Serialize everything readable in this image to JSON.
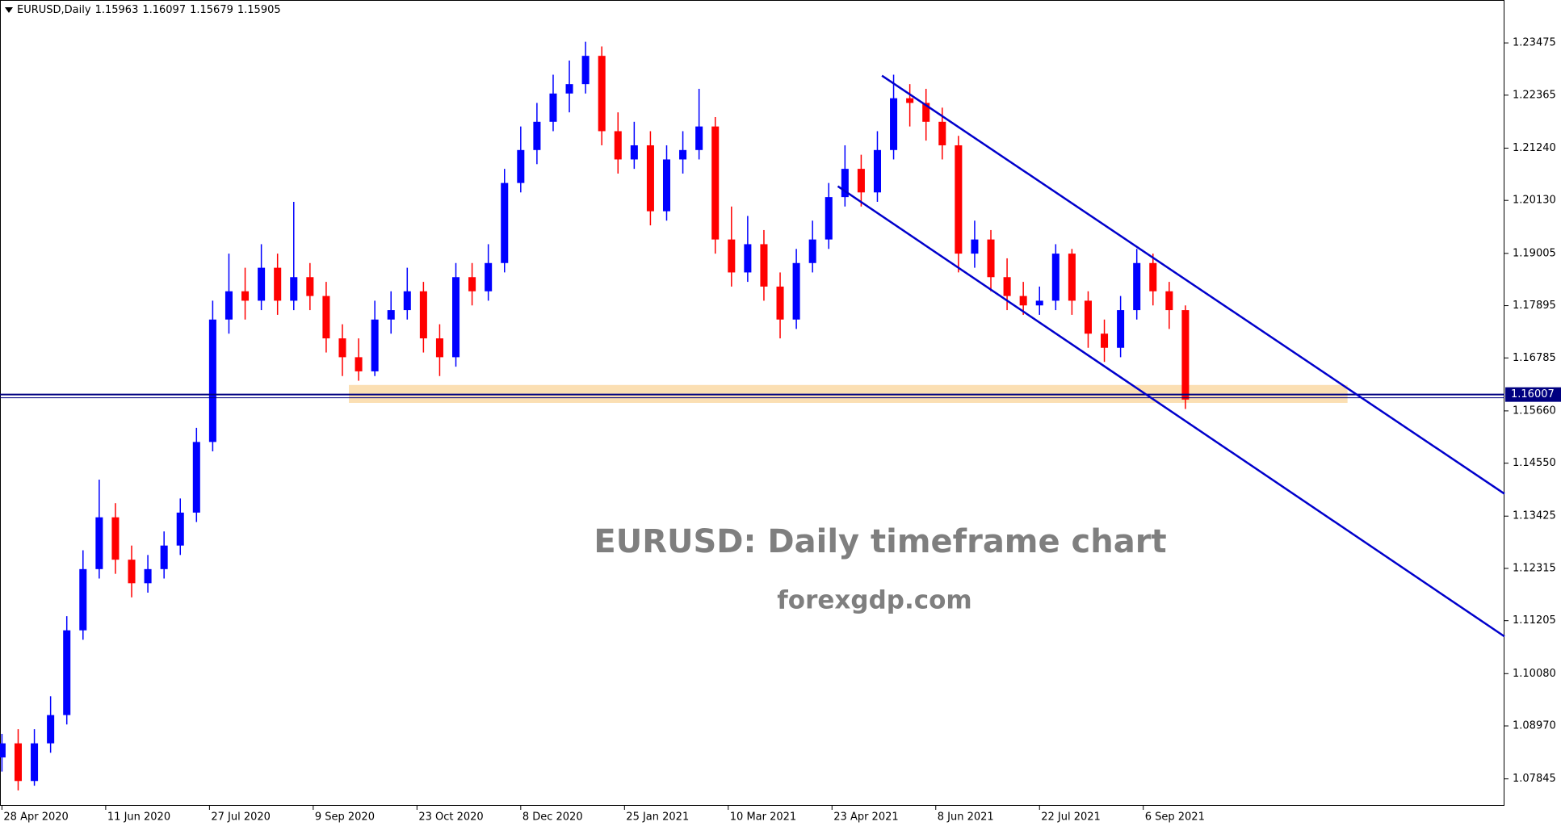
{
  "chart_data": {
    "type": "candlestick",
    "symbol": "EURUSD,Daily",
    "header_ohlc": [
      1.15963,
      1.16097,
      1.15679,
      1.15905
    ],
    "title": "EURUSD: Daily timeframe chart",
    "subtitle": "forexgdp.com",
    "up_color": "#0000ff",
    "down_color": "#ff0000",
    "xlim": [
      -0.6,
      463.4
    ],
    "ylim": [
      1.07273,
      1.24386
    ],
    "xticks": [
      {
        "value": 0,
        "label": "28 Apr 2020"
      },
      {
        "value": 32,
        "label": "11 Jun 2020"
      },
      {
        "value": 64,
        "label": "27 Jul 2020"
      },
      {
        "value": 96,
        "label": "9 Sep 2020"
      },
      {
        "value": 128,
        "label": "23 Oct 2020"
      },
      {
        "value": 160,
        "label": "8 Dec 2020"
      },
      {
        "value": 192,
        "label": "25 Jan 2021"
      },
      {
        "value": 224,
        "label": "10 Mar 2021"
      },
      {
        "value": 256,
        "label": "23 Apr 2021"
      },
      {
        "value": 288,
        "label": "8 Jun 2021"
      },
      {
        "value": 320,
        "label": "22 Jul 2021"
      },
      {
        "value": 352,
        "label": "6 Sep 2021"
      }
    ],
    "yticks": [
      1.23475,
      1.22365,
      {
        "value": 1.2124,
        "label": "1.21240"
      },
      {
        "value": 1.2013,
        "label": "1.20130"
      },
      1.19005,
      1.17895,
      1.16785,
      {
        "value": 1.1566,
        "label": "1.15660"
      },
      {
        "value": 1.1455,
        "label": "1.14550"
      },
      1.13425,
      1.12315,
      1.11205,
      {
        "value": 1.1008,
        "label": "1.10080"
      },
      {
        "value": 1.0897,
        "label": "1.08970"
      },
      1.07845
    ],
    "x": [
      0,
      5,
      10,
      15,
      20,
      25,
      30,
      35,
      40,
      45,
      50,
      55,
      60,
      65,
      70,
      75,
      80,
      85,
      90,
      95,
      100,
      105,
      110,
      115,
      120,
      125,
      130,
      135,
      140,
      145,
      150,
      155,
      160,
      165,
      170,
      175,
      180,
      185,
      190,
      195,
      200,
      205,
      210,
      215,
      220,
      225,
      230,
      235,
      240,
      245,
      250,
      255,
      260,
      265,
      270,
      275,
      280,
      285,
      290,
      295,
      300,
      305,
      310,
      315,
      320,
      325,
      330,
      335,
      340,
      345,
      350,
      355,
      360,
      365
    ],
    "ohlc": [
      [
        1.083,
        1.088,
        1.08,
        1.086
      ],
      [
        1.086,
        1.089,
        1.076,
        1.078
      ],
      [
        1.078,
        1.089,
        1.077,
        1.086
      ],
      [
        1.086,
        1.096,
        1.084,
        1.092
      ],
      [
        1.092,
        1.113,
        1.09,
        1.11
      ],
      [
        1.11,
        1.127,
        1.108,
        1.123
      ],
      [
        1.123,
        1.142,
        1.121,
        1.134
      ],
      [
        1.134,
        1.137,
        1.122,
        1.125
      ],
      [
        1.125,
        1.128,
        1.117,
        1.12
      ],
      [
        1.12,
        1.126,
        1.118,
        1.123
      ],
      [
        1.123,
        1.131,
        1.121,
        1.128
      ],
      [
        1.128,
        1.138,
        1.126,
        1.135
      ],
      [
        1.135,
        1.153,
        1.133,
        1.15
      ],
      [
        1.15,
        1.18,
        1.148,
        1.176
      ],
      [
        1.176,
        1.19,
        1.173,
        1.182
      ],
      [
        1.182,
        1.187,
        1.176,
        1.18
      ],
      [
        1.18,
        1.192,
        1.178,
        1.187
      ],
      [
        1.187,
        1.19,
        1.177,
        1.18
      ],
      [
        1.18,
        1.201,
        1.178,
        1.185
      ],
      [
        1.185,
        1.188,
        1.178,
        1.181
      ],
      [
        1.181,
        1.184,
        1.169,
        1.172
      ],
      [
        1.172,
        1.175,
        1.164,
        1.168
      ],
      [
        1.168,
        1.172,
        1.163,
        1.165
      ],
      [
        1.165,
        1.18,
        1.164,
        1.176
      ],
      [
        1.176,
        1.182,
        1.173,
        1.178
      ],
      [
        1.178,
        1.187,
        1.176,
        1.182
      ],
      [
        1.182,
        1.184,
        1.169,
        1.172
      ],
      [
        1.172,
        1.175,
        1.164,
        1.168
      ],
      [
        1.168,
        1.188,
        1.166,
        1.185
      ],
      [
        1.185,
        1.188,
        1.179,
        1.182
      ],
      [
        1.182,
        1.192,
        1.18,
        1.188
      ],
      [
        1.188,
        1.208,
        1.186,
        1.205
      ],
      [
        1.205,
        1.217,
        1.203,
        1.212
      ],
      [
        1.212,
        1.222,
        1.209,
        1.218
      ],
      [
        1.218,
        1.228,
        1.216,
        1.224
      ],
      [
        1.224,
        1.231,
        1.22,
        1.226
      ],
      [
        1.226,
        1.235,
        1.224,
        1.232
      ],
      [
        1.232,
        1.234,
        1.213,
        1.216
      ],
      [
        1.216,
        1.22,
        1.207,
        1.21
      ],
      [
        1.21,
        1.218,
        1.208,
        1.213
      ],
      [
        1.213,
        1.216,
        1.196,
        1.199
      ],
      [
        1.199,
        1.213,
        1.197,
        1.21
      ],
      [
        1.21,
        1.216,
        1.207,
        1.212
      ],
      [
        1.212,
        1.225,
        1.21,
        1.217
      ],
      [
        1.217,
        1.219,
        1.19,
        1.193
      ],
      [
        1.193,
        1.2,
        1.183,
        1.186
      ],
      [
        1.186,
        1.198,
        1.184,
        1.192
      ],
      [
        1.192,
        1.195,
        1.18,
        1.183
      ],
      [
        1.183,
        1.186,
        1.172,
        1.176
      ],
      [
        1.176,
        1.191,
        1.174,
        1.188
      ],
      [
        1.188,
        1.197,
        1.186,
        1.193
      ],
      [
        1.193,
        1.205,
        1.191,
        1.202
      ],
      [
        1.202,
        1.213,
        1.2,
        1.208
      ],
      [
        1.208,
        1.211,
        1.2,
        1.203
      ],
      [
        1.203,
        1.216,
        1.201,
        1.212
      ],
      [
        1.212,
        1.228,
        1.21,
        1.223
      ],
      [
        1.223,
        1.226,
        1.217,
        1.222
      ],
      [
        1.222,
        1.225,
        1.214,
        1.218
      ],
      [
        1.218,
        1.221,
        1.21,
        1.213
      ],
      [
        1.213,
        1.215,
        1.186,
        1.19
      ],
      [
        1.19,
        1.197,
        1.187,
        1.193
      ],
      [
        1.193,
        1.195,
        1.182,
        1.185
      ],
      [
        1.185,
        1.189,
        1.178,
        1.181
      ],
      [
        1.181,
        1.184,
        1.177,
        1.179
      ],
      [
        1.179,
        1.183,
        1.177,
        1.18
      ],
      [
        1.18,
        1.192,
        1.178,
        1.19
      ],
      [
        1.19,
        1.191,
        1.177,
        1.18
      ],
      [
        1.18,
        1.182,
        1.17,
        1.173
      ],
      [
        1.173,
        1.176,
        1.167,
        1.17
      ],
      [
        1.17,
        1.181,
        1.168,
        1.178
      ],
      [
        1.178,
        1.191,
        1.176,
        1.188
      ],
      [
        1.188,
        1.19,
        1.179,
        1.182
      ],
      [
        1.182,
        1.184,
        1.174,
        1.178
      ],
      [
        1.178,
        1.179,
        1.157,
        1.159
      ]
    ],
    "price_line": 1.16007,
    "price_line_color": "#000080",
    "support_zone": {
      "x": [
        107,
        415
      ],
      "y": [
        1.1583,
        1.1621
      ],
      "color": "#fad9a6"
    },
    "trendlines": [
      {
        "x": [
          271.4,
          463.4
        ],
        "y": [
          1.2278,
          1.139
        ],
        "color": "#0000cc"
      },
      {
        "x": [
          257.8,
          463.4
        ],
        "y": [
          1.2043,
          1.1087
        ],
        "color": "#0000cc"
      }
    ]
  }
}
